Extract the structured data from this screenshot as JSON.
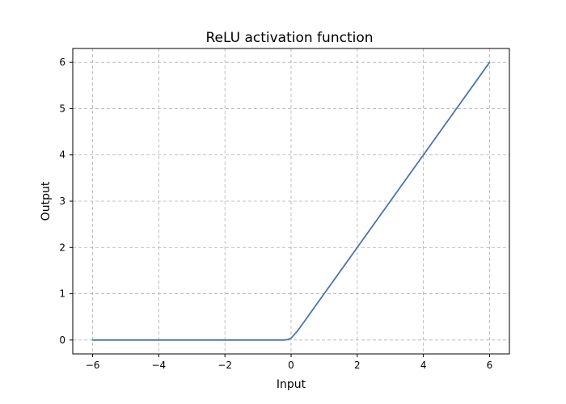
{
  "chart_data": {
    "type": "line",
    "title": "ReLU activation function",
    "xlabel": "Input",
    "ylabel": "Output",
    "xlim": [
      -6.6,
      6.6
    ],
    "ylim": [
      -0.3,
      6.3
    ],
    "xticks": [
      -6,
      -4,
      -2,
      0,
      2,
      4,
      6
    ],
    "xtick_labels": [
      "−6",
      "−4",
      "−2",
      "0",
      "2",
      "4",
      "6"
    ],
    "yticks": [
      0,
      1,
      2,
      3,
      4,
      5,
      6
    ],
    "ytick_labels": [
      "0",
      "1",
      "2",
      "3",
      "4",
      "5",
      "6"
    ],
    "grid": true,
    "series": [
      {
        "color": "#4c72b0",
        "x": [
          -6,
          -4,
          -2,
          -0.2,
          -0.1,
          0,
          0.1,
          0.2,
          2,
          4,
          6
        ],
        "y": [
          0,
          0,
          0,
          0.0,
          0.01,
          0.04,
          0.12,
          0.2,
          2,
          4,
          6
        ]
      }
    ]
  }
}
